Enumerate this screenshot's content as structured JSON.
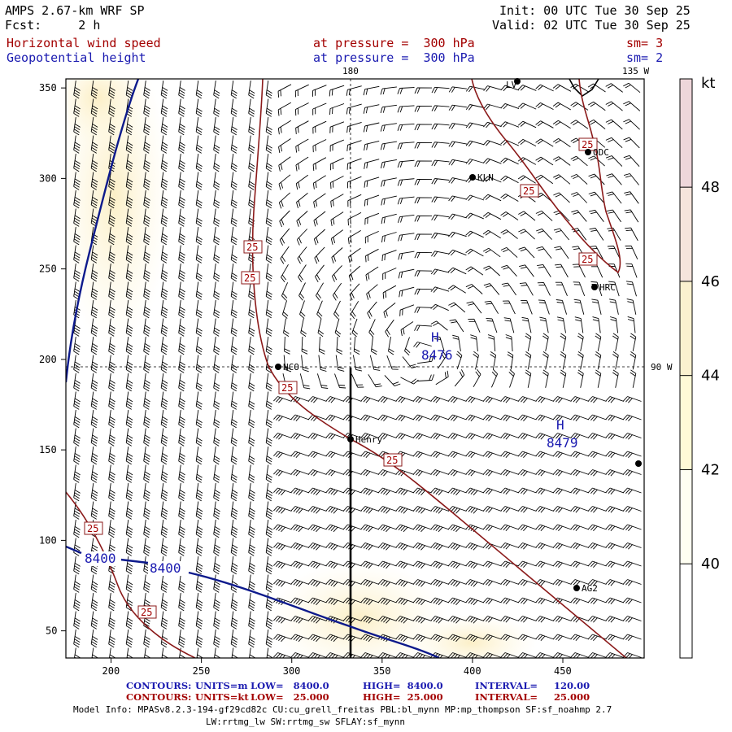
{
  "header": {
    "model": "AMPS 2.67-km WRF SP",
    "fcst": "Fcst:     2 h",
    "init": "Init: 00 UTC Tue 30 Sep 25",
    "valid": "Valid: 02 UTC Tue 30 Sep 25",
    "field1": "Horizontal wind speed",
    "field1_level": "at pressure =  300 hPa",
    "field1_sm": "sm= 3",
    "field2": "Geopotential height",
    "field2_level": "at pressure =  300 hPa",
    "field2_sm": "sm= 2"
  },
  "map_labels": {
    "meridian_180": "180",
    "meridian_135w": "135 W",
    "meridian_90w": "90 W",
    "high1_h": "H",
    "high1_value": "8476",
    "high2_h": "H",
    "high2_value": "8479",
    "low_contour_1": "8400",
    "low_contour_2": "8400",
    "speed_contour_label": "25",
    "stations": [
      "NCO",
      "Henry",
      "KLN",
      "ODC",
      "HRC",
      "AG2",
      "LV"
    ]
  },
  "axes": {
    "x_ticks": [
      "200",
      "250",
      "300",
      "350",
      "400",
      "450"
    ],
    "y_ticks": [
      "50",
      "100",
      "150",
      "200",
      "250",
      "300",
      "350"
    ]
  },
  "colorbar": {
    "unit": "kt",
    "ticks": [
      "40",
      "42",
      "44",
      "46",
      "48"
    ],
    "colors": [
      "#fffff2",
      "#fff9d6",
      "#fbf1cf",
      "#f6e4dc",
      "#eed6da"
    ]
  },
  "colors": {
    "height_contour": "#0d1a8c",
    "speed_contour": "#8b1a1a",
    "label_red": "#a30000",
    "label_blue": "#1a1ab0"
  },
  "footer": {
    "line1_prefix": "CONTOURS:",
    "line1_units": "UNITS=m",
    "line1_low": "LOW=   8400.0",
    "line1_high": "HIGH=  8400.0",
    "line1_interval": "INTERVAL=     120.00",
    "line2_prefix": "CONTOURS:",
    "line2_units": "UNITS=kt",
    "line2_low": "LOW=   25.000",
    "line2_high": "HIGH=  25.000",
    "line2_interval": "INTERVAL=     25.000",
    "model_info": "Model Info: MPASv8.2.3-194-gf29cd82c CU:cu_grell_freitas PBL:bl_mynn MP:mp_thompson SF:sf_noahmp 2.7",
    "model_info2": "LW:rrtmg_lw SW:rrtmg_sw SFLAY:sf_mynn"
  }
}
